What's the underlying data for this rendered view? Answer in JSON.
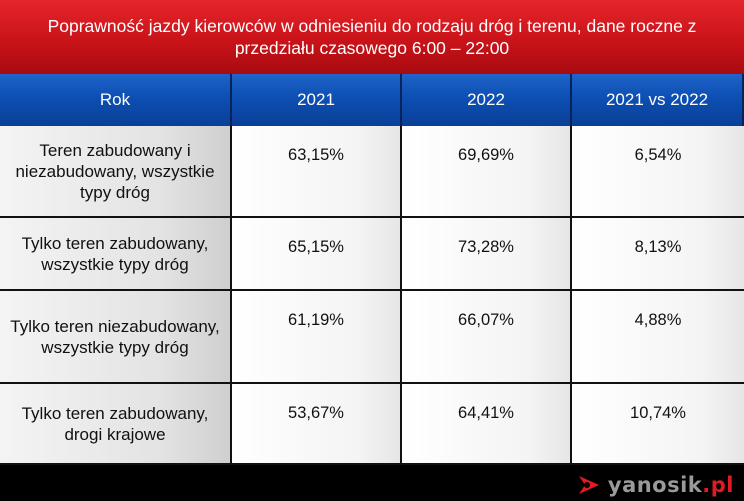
{
  "chart_data": {
    "type": "table",
    "title": "Poprawność jazdy kierowców w odniesieniu do rodzaju dróg i terenu, dane roczne z przedziału czasowego 6:00 – 22:00",
    "columns": [
      "Rok",
      "2021",
      "2022",
      "2021 vs 2022"
    ],
    "rows": [
      {
        "label": "Teren zabudowany i niezabudowany, wszystkie typy dróg",
        "values": [
          "63,15%",
          "69,69%",
          "6,54%"
        ]
      },
      {
        "label": "Tylko teren zabudowany, wszystkie typy dróg",
        "values": [
          "65,15%",
          "73,28%",
          "8,13%"
        ]
      },
      {
        "label": "Tylko teren niezabudowany, wszystkie typy dróg",
        "values": [
          "61,19%",
          "66,07%",
          "4,88%"
        ]
      },
      {
        "label": "Tylko teren zabudowany, drogi krajowe",
        "values": [
          "53,67%",
          "64,41%",
          "10,74%"
        ]
      }
    ]
  },
  "logo": {
    "text": "yanosik",
    "ext": ".pl"
  },
  "colors": {
    "title_bg": "#d0151b",
    "header_bg": "#0d4fb3",
    "logo_red": "#e11b22"
  }
}
